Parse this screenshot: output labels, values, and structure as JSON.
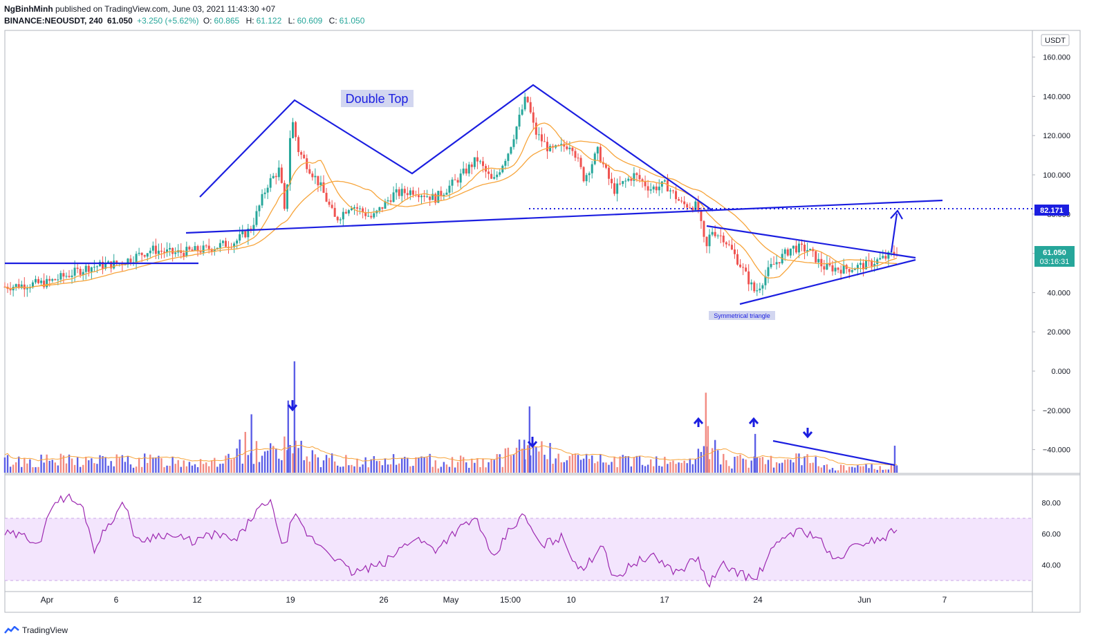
{
  "header": {
    "author": "NgBinhMinh",
    "published_text": "published on TradingView.com, June 03, 2021 11:43:30 +07",
    "symbol": "BINANCE:NEOUSDT, 240",
    "last": "61.050",
    "change": "+3.250 (+5.62%)",
    "o_label": "O:",
    "o_value": "60.865",
    "h_label": "H:",
    "h_value": "61.122",
    "l_label": "L:",
    "l_value": "60.609",
    "c_label": "C:",
    "c_value": "61.050"
  },
  "footer": {
    "brand": "TradingView"
  },
  "colors": {
    "up": "#26a69a",
    "down": "#ef5350",
    "ma": "#f7a43a",
    "drawing": "#1b1ee0",
    "volume_up": "#5b5ee6",
    "volume_down": "#f28b82",
    "rsi": "#9c27b0",
    "rsi_band": "#f3e5fd"
  },
  "chart_data": [
    {
      "type": "candlestick",
      "title": "",
      "currency_label": "USDT",
      "y_ticks": [
        "160.000",
        "140.000",
        "120.000",
        "100.000",
        "80.000",
        "60.000",
        "40.000",
        "20.000",
        "0.000",
        "−20.000",
        "−40.000"
      ],
      "ylim": [
        -50,
        170
      ],
      "x_ticks": [
        "Apr",
        "6",
        "12",
        "19",
        "26",
        "May",
        "15:00",
        "10",
        "17",
        "24",
        "Jun",
        "7"
      ],
      "price_line_label": "82.171",
      "last_price_label": "61.050",
      "countdown_label": "03:16:31",
      "annotations": [
        {
          "text": "Double Top"
        },
        {
          "text": "Symmetrical triangle"
        }
      ],
      "price_path": [
        {
          "t": 0,
          "p": 43
        },
        {
          "t": 4,
          "p": 45
        },
        {
          "t": 8,
          "p": 53
        },
        {
          "t": 11,
          "p": 55
        },
        {
          "t": 14,
          "p": 62
        },
        {
          "t": 16,
          "p": 60
        },
        {
          "t": 19,
          "p": 62
        },
        {
          "t": 22,
          "p": 66
        },
        {
          "t": 23.5,
          "p": 73
        },
        {
          "t": 25,
          "p": 95
        },
        {
          "t": 26.2,
          "p": 103
        },
        {
          "t": 26.7,
          "p": 78
        },
        {
          "t": 27.3,
          "p": 130
        },
        {
          "t": 28,
          "p": 112
        },
        {
          "t": 30,
          "p": 95
        },
        {
          "t": 31.5,
          "p": 77
        },
        {
          "t": 33,
          "p": 85
        },
        {
          "t": 35,
          "p": 78
        },
        {
          "t": 37,
          "p": 90
        },
        {
          "t": 39,
          "p": 92
        },
        {
          "t": 41,
          "p": 88
        },
        {
          "t": 43,
          "p": 97
        },
        {
          "t": 45,
          "p": 108
        },
        {
          "t": 46.5,
          "p": 96
        },
        {
          "t": 48,
          "p": 112
        },
        {
          "t": 49.7,
          "p": 140
        },
        {
          "t": 50.5,
          "p": 122
        },
        {
          "t": 52,
          "p": 112
        },
        {
          "t": 54,
          "p": 116
        },
        {
          "t": 55.2,
          "p": 98
        },
        {
          "t": 56.5,
          "p": 112
        },
        {
          "t": 58,
          "p": 92
        },
        {
          "t": 60,
          "p": 100
        },
        {
          "t": 61.5,
          "p": 93
        },
        {
          "t": 63,
          "p": 95
        },
        {
          "t": 64.5,
          "p": 85
        },
        {
          "t": 66,
          "p": 84
        },
        {
          "t": 66.8,
          "p": 61
        },
        {
          "t": 67.3,
          "p": 72
        },
        {
          "t": 68.5,
          "p": 68
        },
        {
          "t": 70,
          "p": 55
        },
        {
          "t": 71.5,
          "p": 40
        },
        {
          "t": 73,
          "p": 53
        },
        {
          "t": 75,
          "p": 63
        },
        {
          "t": 76.5,
          "p": 62
        },
        {
          "t": 78,
          "p": 53
        },
        {
          "t": 80,
          "p": 52
        },
        {
          "t": 82,
          "p": 54
        },
        {
          "t": 84,
          "p": 58
        },
        {
          "t": 85,
          "p": 61
        }
      ],
      "volume_spikes": [
        {
          "t": 27.6,
          "v": 5
        },
        {
          "t": 27.0,
          "v": -15
        },
        {
          "t": 23.5,
          "v": -22
        },
        {
          "t": 50.0,
          "v": -18
        },
        {
          "t": 49.5,
          "v": -35
        },
        {
          "t": 66.8,
          "v": -11
        },
        {
          "t": 67.0,
          "v": -28
        },
        {
          "t": 71.5,
          "v": -32
        },
        {
          "t": 84.8,
          "v": -38
        }
      ]
    },
    {
      "type": "line",
      "title": "",
      "y_ticks": [
        "80.00",
        "60.00",
        "40.00"
      ],
      "ylim": [
        25,
        90
      ],
      "band": [
        30,
        70
      ],
      "rsi_path": [
        {
          "t": 0,
          "p": 60
        },
        {
          "t": 2,
          "p": 58
        },
        {
          "t": 3.5,
          "p": 55
        },
        {
          "t": 4.5,
          "p": 80
        },
        {
          "t": 6,
          "p": 84
        },
        {
          "t": 7.5,
          "p": 76
        },
        {
          "t": 8.5,
          "p": 50
        },
        {
          "t": 10,
          "p": 68
        },
        {
          "t": 11.5,
          "p": 80
        },
        {
          "t": 12.5,
          "p": 55
        },
        {
          "t": 15,
          "p": 60
        },
        {
          "t": 18,
          "p": 55
        },
        {
          "t": 20,
          "p": 60
        },
        {
          "t": 22,
          "p": 55
        },
        {
          "t": 24,
          "p": 75
        },
        {
          "t": 25.5,
          "p": 80
        },
        {
          "t": 26.5,
          "p": 48
        },
        {
          "t": 27.5,
          "p": 72
        },
        {
          "t": 29,
          "p": 58
        },
        {
          "t": 31,
          "p": 48
        },
        {
          "t": 33,
          "p": 35
        },
        {
          "t": 36,
          "p": 40
        },
        {
          "t": 39,
          "p": 58
        },
        {
          "t": 41,
          "p": 50
        },
        {
          "t": 43,
          "p": 62
        },
        {
          "t": 45,
          "p": 70
        },
        {
          "t": 46.5,
          "p": 42
        },
        {
          "t": 48,
          "p": 62
        },
        {
          "t": 49.5,
          "p": 72
        },
        {
          "t": 51,
          "p": 52
        },
        {
          "t": 53,
          "p": 58
        },
        {
          "t": 55,
          "p": 35
        },
        {
          "t": 57,
          "p": 55
        },
        {
          "t": 58,
          "p": 30
        },
        {
          "t": 60,
          "p": 42
        },
        {
          "t": 62,
          "p": 45
        },
        {
          "t": 64,
          "p": 35
        },
        {
          "t": 66,
          "p": 45
        },
        {
          "t": 67,
          "p": 27
        },
        {
          "t": 68.5,
          "p": 40
        },
        {
          "t": 70,
          "p": 35
        },
        {
          "t": 71.5,
          "p": 30
        },
        {
          "t": 73,
          "p": 48
        },
        {
          "t": 74.5,
          "p": 60
        },
        {
          "t": 76,
          "p": 62
        },
        {
          "t": 77.5,
          "p": 58
        },
        {
          "t": 79,
          "p": 42
        },
        {
          "t": 80.5,
          "p": 50
        },
        {
          "t": 82,
          "p": 55
        },
        {
          "t": 84,
          "p": 58
        },
        {
          "t": 85,
          "p": 65
        }
      ]
    }
  ]
}
